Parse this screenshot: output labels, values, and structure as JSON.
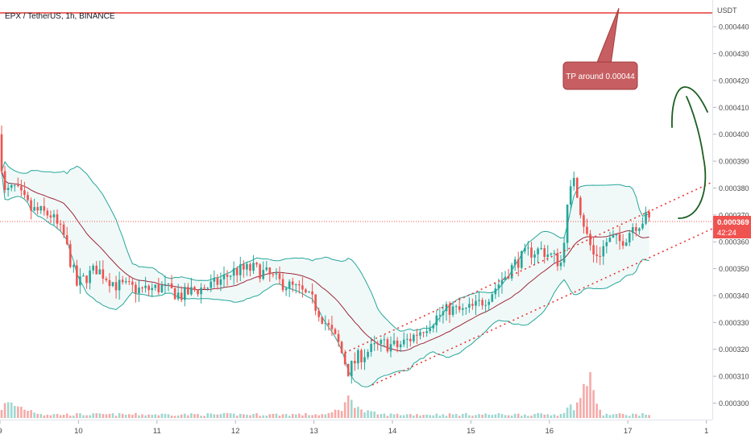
{
  "header": {
    "symbol_title": "EPX / TetherUS, 1h, BINANCE"
  },
  "price_axis": {
    "currency_label": "USDT",
    "ticks": [
      "0.000440",
      "0.000430",
      "0.000420",
      "0.000410",
      "0.000400",
      "0.000390",
      "0.000380",
      "0.000370",
      "0.000360",
      "0.000350",
      "0.000340",
      "0.000330",
      "0.000320",
      "0.000310",
      "0.000300"
    ],
    "current_price_label": "0.000369",
    "countdown_label": "42:24"
  },
  "time_axis": {
    "ticks": [
      "9",
      "10",
      "11",
      "12",
      "13",
      "14",
      "15",
      "16",
      "17",
      "1"
    ]
  },
  "annotation": {
    "text": "TP around 0.00044"
  },
  "colors": {
    "bull": "#26a69a",
    "bear": "#ef5350",
    "bollinger": "#26a69a",
    "basis": "#a0263a",
    "channel": "#e53935",
    "resistance": "#e53935",
    "arrow": "#1b5e20",
    "callout_bg": "#c75f62",
    "price_tag": "#ef5350"
  },
  "chart_data": {
    "type": "candlestick",
    "title": "EPX / TetherUS, 1h, BINANCE",
    "x_unit": "hour offset from day 9 00:00",
    "xlim": [
      0,
      210
    ],
    "ylim": [
      0.0003,
      0.000445
    ],
    "indicators": [
      "Bollinger Bands",
      "Volume"
    ],
    "resistance_level": 0.00044,
    "current_price": 0.000369,
    "price_path": [
      [
        0,
        0.0004
      ],
      [
        2,
        0.000378
      ],
      [
        5,
        0.00038
      ],
      [
        10,
        0.000372
      ],
      [
        16,
        0.00037
      ],
      [
        20,
        0.000362
      ],
      [
        24,
        0.000344
      ],
      [
        30,
        0.00035
      ],
      [
        36,
        0.000344
      ],
      [
        44,
        0.000342
      ],
      [
        50,
        0.000343
      ],
      [
        56,
        0.00034
      ],
      [
        60,
        0.000342
      ],
      [
        66,
        0.000344
      ],
      [
        72,
        0.000349
      ],
      [
        78,
        0.00035
      ],
      [
        82,
        0.000348
      ],
      [
        86,
        0.000345
      ],
      [
        92,
        0.000342
      ],
      [
        96,
        0.000338
      ],
      [
        100,
        0.00033
      ],
      [
        104,
        0.000322
      ],
      [
        107,
        0.000312
      ],
      [
        110,
        0.000317
      ],
      [
        114,
        0.00032
      ],
      [
        118,
        0.000322
      ],
      [
        122,
        0.000321
      ],
      [
        126,
        0.000324
      ],
      [
        130,
        0.000328
      ],
      [
        134,
        0.000332
      ],
      [
        138,
        0.000335
      ],
      [
        142,
        0.000334
      ],
      [
        146,
        0.000336
      ],
      [
        150,
        0.00034
      ],
      [
        154,
        0.000346
      ],
      [
        158,
        0.000352
      ],
      [
        162,
        0.000356
      ],
      [
        166,
        0.000357
      ],
      [
        170,
        0.000354
      ],
      [
        172,
        0.000352
      ],
      [
        174,
        0.000372
      ],
      [
        176,
        0.000385
      ],
      [
        178,
        0.000372
      ],
      [
        180,
        0.000362
      ],
      [
        182,
        0.000355
      ],
      [
        184,
        0.000356
      ],
      [
        186,
        0.00036
      ],
      [
        188,
        0.000361
      ],
      [
        190,
        0.00036
      ],
      [
        192,
        0.000362
      ],
      [
        194,
        0.000366
      ],
      [
        196,
        0.000367
      ],
      [
        198,
        0.000369
      ]
    ],
    "volume_path": [
      [
        0,
        3
      ],
      [
        2,
        4
      ],
      [
        6,
        3
      ],
      [
        13,
        1
      ],
      [
        17,
        1
      ],
      [
        20,
        1
      ],
      [
        24,
        1
      ],
      [
        40,
        1
      ],
      [
        60,
        1
      ],
      [
        80,
        1
      ],
      [
        100,
        1
      ],
      [
        104,
        3
      ],
      [
        107,
        6
      ],
      [
        110,
        2
      ],
      [
        116,
        1
      ],
      [
        140,
        1
      ],
      [
        160,
        1
      ],
      [
        170,
        1
      ],
      [
        174,
        3
      ],
      [
        177,
        5
      ],
      [
        180,
        14
      ],
      [
        182,
        3
      ],
      [
        184,
        1
      ],
      [
        190,
        1
      ],
      [
        198,
        1
      ]
    ]
  }
}
